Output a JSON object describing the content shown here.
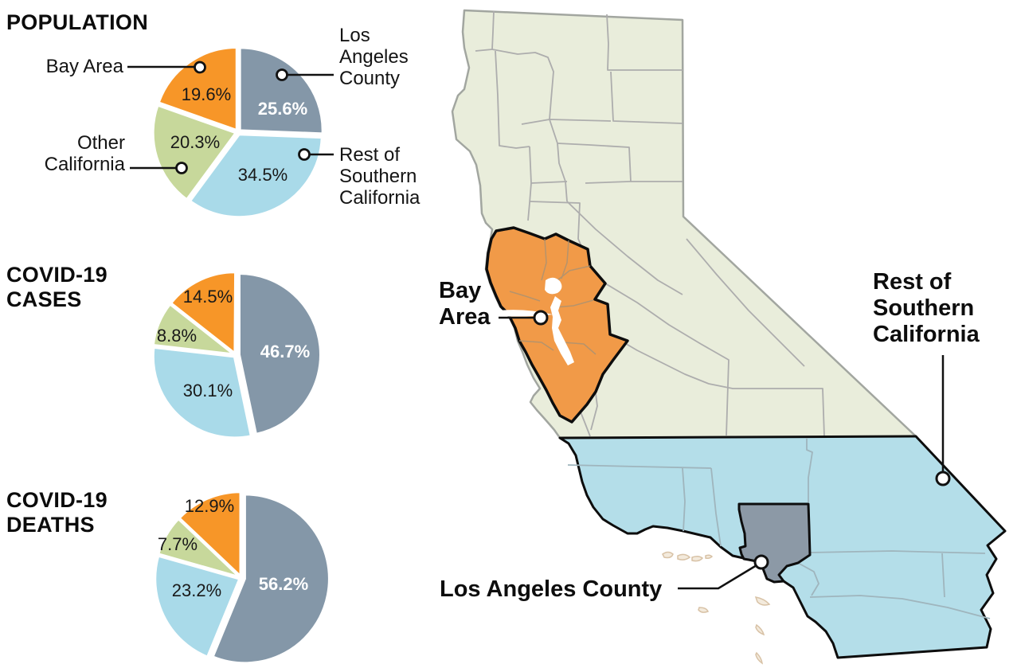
{
  "page": {
    "background": "#ffffff",
    "kind": "news-infographic"
  },
  "colors": {
    "la_county": "#8497A8",
    "rest_socal": "#A9DAE9",
    "other_ca": "#C7D89B",
    "bay_area": "#F79628",
    "map_other_ca": "#E9EDDB",
    "map_rest_socal": "#B4DEE9",
    "map_la_county": "#8C99A6",
    "map_bay_area": "#F19A48",
    "island_fill": "#F3EADC",
    "island_stroke": "#D8C2A6",
    "county_line": "#ADADAD",
    "state_border": "#A2A6A0",
    "leader_line": "#111111"
  },
  "chart_data": [
    {
      "type": "pie",
      "title": "POPULATION",
      "unit": "percent",
      "clockwise_from_top": true,
      "slices": [
        {
          "label": "Los Angeles County",
          "value": 25.6,
          "display": "25.6%",
          "color": "#8497A8"
        },
        {
          "label": "Rest of Southern California",
          "value": 34.5,
          "display": "34.5%",
          "color": "#A9DAE9"
        },
        {
          "label": "Other California",
          "value": 20.3,
          "display": "20.3%",
          "color": "#C7D89B"
        },
        {
          "label": "Bay Area",
          "value": 19.6,
          "display": "19.6%",
          "color": "#F79628"
        }
      ]
    },
    {
      "type": "pie",
      "title": "COVID-19 CASES",
      "unit": "percent",
      "clockwise_from_top": true,
      "slices": [
        {
          "label": "Los Angeles County",
          "value": 46.7,
          "display": "46.7%",
          "color": "#8497A8"
        },
        {
          "label": "Rest of Southern California",
          "value": 30.1,
          "display": "30.1%",
          "color": "#A9DAE9"
        },
        {
          "label": "Other California",
          "value": 8.8,
          "display": "8.8%",
          "color": "#C7D89B"
        },
        {
          "label": "Bay Area",
          "value": 14.5,
          "display": "14.5%",
          "color": "#F79628"
        }
      ]
    },
    {
      "type": "pie",
      "title": "COVID-19 DEATHS",
      "unit": "percent",
      "clockwise_from_top": true,
      "slices": [
        {
          "label": "Los Angeles County",
          "value": 56.2,
          "display": "56.2%",
          "color": "#8497A8"
        },
        {
          "label": "Rest of Southern California",
          "value": 23.2,
          "display": "23.2%",
          "color": "#A9DAE9"
        },
        {
          "label": "Other California",
          "value": 7.7,
          "display": "7.7%",
          "color": "#C7D89B"
        },
        {
          "label": "Bay Area",
          "value": 12.9,
          "display": "12.9%",
          "color": "#F79628"
        }
      ]
    }
  ],
  "titles": {
    "population": "POPULATION",
    "cases": "COVID-19\nCASES",
    "deaths": "COVID-19\nDEATHS"
  },
  "pie_callouts": {
    "bay_area": "Bay Area",
    "la_county": "Los\nAngeles\nCounty",
    "other_ca": "Other\nCalifornia",
    "rest_socal": "Rest of\nSouthern\nCalifornia"
  },
  "map_labels": {
    "bay_area": "Bay\nArea",
    "rest_socal": "Rest of\nSouthern\nCalifornia",
    "la_county": "Los Angeles County"
  }
}
